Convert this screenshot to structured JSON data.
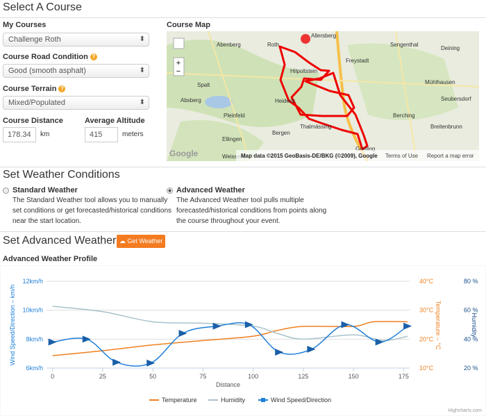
{
  "header": {
    "title": "Select A Course"
  },
  "course_form": {
    "my_courses_label": "My Courses",
    "my_courses_value": "Challenge Roth",
    "road_condition_label": "Course Road Condition",
    "road_condition_value": "Good (smooth asphalt)",
    "terrain_label": "Course Terrain",
    "terrain_value": "Mixed/Populated",
    "distance_label": "Course Distance",
    "distance_value": "178.34",
    "distance_unit": "km",
    "altitude_label": "Average Altitude",
    "altitude_value": "415",
    "altitude_unit": "meters"
  },
  "map": {
    "label": "Course Map",
    "places": [
      "Roth",
      "Allersberg",
      "Abenberg",
      "Hilpoltstein",
      "Freystadt",
      "Sengenthal",
      "Deining",
      "Spalt",
      "Mühlhausen",
      "Seubersdorf",
      "Absberg",
      "Heideck",
      "Berching",
      "Pleinfeld",
      "Thalmässing",
      "Breitenbrunn",
      "Ellingen",
      "Bergen",
      "Greding",
      "Weissenb"
    ],
    "attribution": "Map data ©2015 GeoBasis-DE/BKG (©2009), Google",
    "terms": "Terms of Use",
    "report": "Report a map error",
    "logo": "Google"
  },
  "weather_conditions": {
    "title": "Set Weather Conditions",
    "options": [
      {
        "label": "Standard Weather",
        "description": [
          "The Standard Weather tool allows you to manually",
          "set conditions or get forecasted/historical conditions",
          "near the start location."
        ]
      },
      {
        "label": "Advanced Weather",
        "description": [
          "The Advanced Weather tool pulls multiple",
          "forecasted/historical conditions from points along",
          "the course throughout your event."
        ]
      }
    ]
  },
  "advanced_weather": {
    "title": "Set Advanced Weather",
    "button": "Get Weather",
    "profile_title": "Advanced Weather Profile"
  },
  "chart_data": {
    "type": "line",
    "x_label": "Distance",
    "y_label": "Wind Speed/Direction – km/h",
    "y2_label": "Temperature – °C",
    "y3_label": "Humidity",
    "xlim": [
      -3,
      178
    ],
    "xticks": [
      0,
      25,
      50,
      75,
      100,
      125,
      150,
      175
    ],
    "ylim": [
      6,
      12
    ],
    "yticks": [
      {
        "value": 6,
        "label": "6km/h"
      },
      {
        "value": 8,
        "label": "8km/h"
      },
      {
        "value": 10,
        "label": "10km/h"
      },
      {
        "value": 12,
        "label": "12km/h"
      }
    ],
    "y2lim": [
      10,
      40
    ],
    "y2ticks": [
      {
        "value": 10,
        "label": "10°C"
      },
      {
        "value": 20,
        "label": "20°C"
      },
      {
        "value": 30,
        "label": "30°C"
      },
      {
        "value": 40,
        "label": "40°C"
      }
    ],
    "y3lim": [
      20,
      80
    ],
    "y3ticks": [
      {
        "value": 20,
        "label": "20 %"
      },
      {
        "value": 40,
        "label": "40 %"
      },
      {
        "value": 60,
        "label": "60 %"
      },
      {
        "value": 80,
        "label": "80 %"
      }
    ],
    "grid": true,
    "series": [
      {
        "name": "Temperature",
        "color": "#f07f1f",
        "axis": "y2",
        "x": [
          0,
          25,
          50,
          75,
          100,
          112,
          125,
          150,
          160,
          177
        ],
        "values": [
          14.3,
          16,
          18,
          19.5,
          21,
          23,
          24.4,
          24.4,
          26,
          26
        ]
      },
      {
        "name": "Humidity",
        "color": "#a9c2cc",
        "axis": "y3",
        "x": [
          0,
          25,
          50,
          75,
          100,
          112,
          125,
          150,
          165,
          177
        ],
        "values": [
          62.7,
          59,
          52,
          51,
          49,
          44,
          40,
          43,
          39,
          42
        ]
      },
      {
        "name": "Wind Speed/Direction",
        "color": "#1e7fd8",
        "axis": "y",
        "x": [
          0,
          17,
          32,
          49,
          65,
          82,
          98,
          113,
          129,
          146,
          163,
          177
        ],
        "values": [
          7.8,
          8,
          6.4,
          6.35,
          8.4,
          8.9,
          9,
          7.1,
          7.3,
          9,
          7.8,
          8.9
        ]
      }
    ],
    "credit": "Highcharts.com"
  }
}
